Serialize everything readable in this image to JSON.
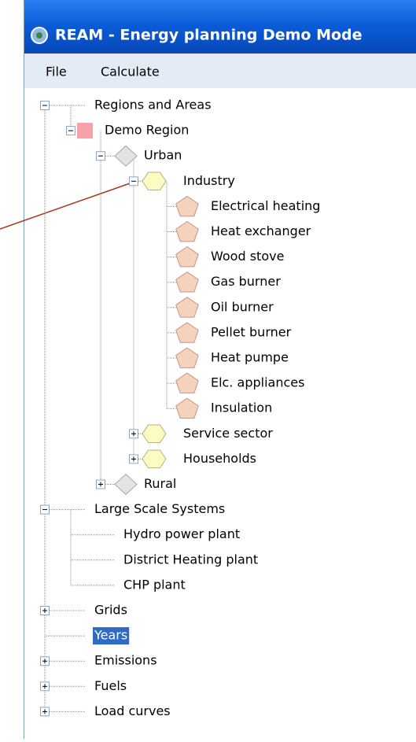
{
  "window": {
    "title": "REAM - Energy planning  Demo Mode"
  },
  "menu": [
    "File",
    "Calculate"
  ],
  "tree": [
    {
      "label": "Regions and Areas",
      "expanded": true,
      "children": [
        {
          "label": "Demo Region",
          "expanded": true,
          "children": [
            {
              "label": "Urban",
              "expanded": true,
              "children": [
                {
                  "label": "Industry",
                  "expanded": true,
                  "children": [
                    {
                      "label": "Electrical heating"
                    },
                    {
                      "label": "Heat exchanger"
                    },
                    {
                      "label": "Wood stove"
                    },
                    {
                      "label": "Gas burner"
                    },
                    {
                      "label": "Oil burner"
                    },
                    {
                      "label": "Pellet burner"
                    },
                    {
                      "label": "Heat pumpe"
                    },
                    {
                      "label": "Elc. appliances"
                    },
                    {
                      "label": "Insulation"
                    }
                  ]
                },
                {
                  "label": "Service sector",
                  "expanded": false
                },
                {
                  "label": "Households",
                  "expanded": false
                }
              ]
            },
            {
              "label": "Rural",
              "expanded": false
            }
          ]
        }
      ]
    },
    {
      "label": "Large Scale Systems",
      "expanded": true,
      "children": [
        {
          "label": "Hydro power plant"
        },
        {
          "label": "District Heating plant"
        },
        {
          "label": "CHP plant"
        }
      ]
    },
    {
      "label": "Grids",
      "expanded": false
    },
    {
      "label": "Years",
      "selected": true
    },
    {
      "label": "Emissions",
      "expanded": false
    },
    {
      "label": "Fuels",
      "expanded": false
    },
    {
      "label": "Load curves",
      "expanded": false
    }
  ]
}
